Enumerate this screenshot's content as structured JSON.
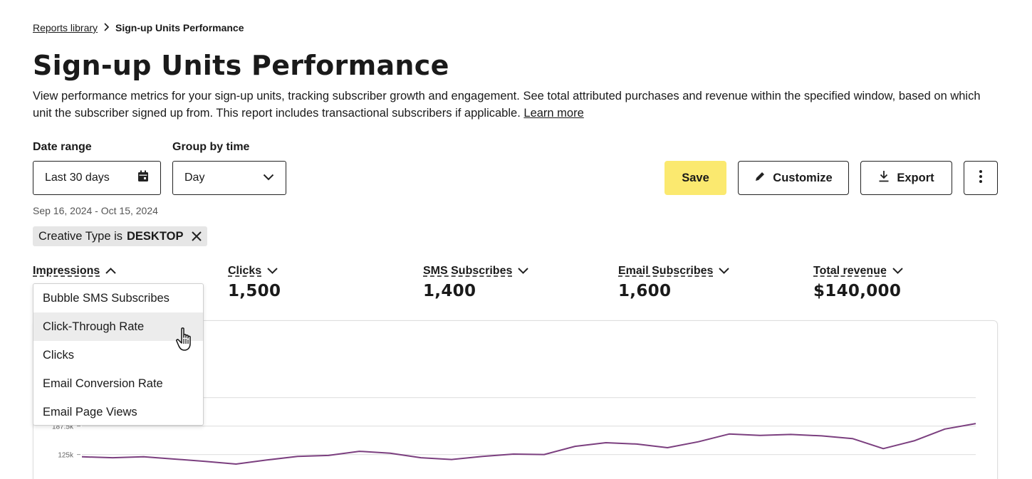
{
  "breadcrumb": {
    "parent": "Reports library",
    "current": "Sign-up Units Performance"
  },
  "page": {
    "title": "Sign-up Units Performance",
    "description": "View performance metrics for your sign-up units, tracking subscriber growth and engagement. See total attributed purchases and revenue within the specified window, based on which unit the subscriber signed up from. This report includes transactional subscribers if applicable.",
    "learn_more": "Learn more"
  },
  "filters": {
    "date_range_label": "Date range",
    "date_range_value": "Last 30 days",
    "group_by_label": "Group by time",
    "group_by_value": "Day",
    "date_span": "Sep 16, 2024 - Oct 15, 2024"
  },
  "toolbar": {
    "save": "Save",
    "customize": "Customize",
    "export": "Export"
  },
  "chip": {
    "prefix": "Creative Type is",
    "value": "DESKTOP"
  },
  "metrics": [
    {
      "label": "Impressions",
      "value": ""
    },
    {
      "label": "Clicks",
      "value": "1,500"
    },
    {
      "label": "SMS Subscribes",
      "value": "1,400"
    },
    {
      "label": "Email Subscribes",
      "value": "1,600"
    },
    {
      "label": "Total revenue",
      "value": "$140,000"
    }
  ],
  "dropdown": {
    "items": [
      "Bubble SMS Subscribes",
      "Click-Through Rate",
      "Clicks",
      "Email Conversion Rate",
      "Email Page Views"
    ],
    "hovered_index": 1
  },
  "colors": {
    "accent_save": "#fbe96f",
    "line": "#7b3f7f"
  },
  "chart_data": {
    "type": "line",
    "y_tick_labels": [
      "125k",
      "187.5k"
    ],
    "series": [
      {
        "values": [
          120,
          118,
          120,
          115,
          110,
          104,
          113,
          121,
          123,
          132,
          128,
          118,
          114,
          121,
          126,
          125,
          143,
          151,
          148,
          140,
          153,
          170,
          167,
          169,
          166,
          160,
          138,
          155,
          181,
          193
        ]
      }
    ]
  }
}
